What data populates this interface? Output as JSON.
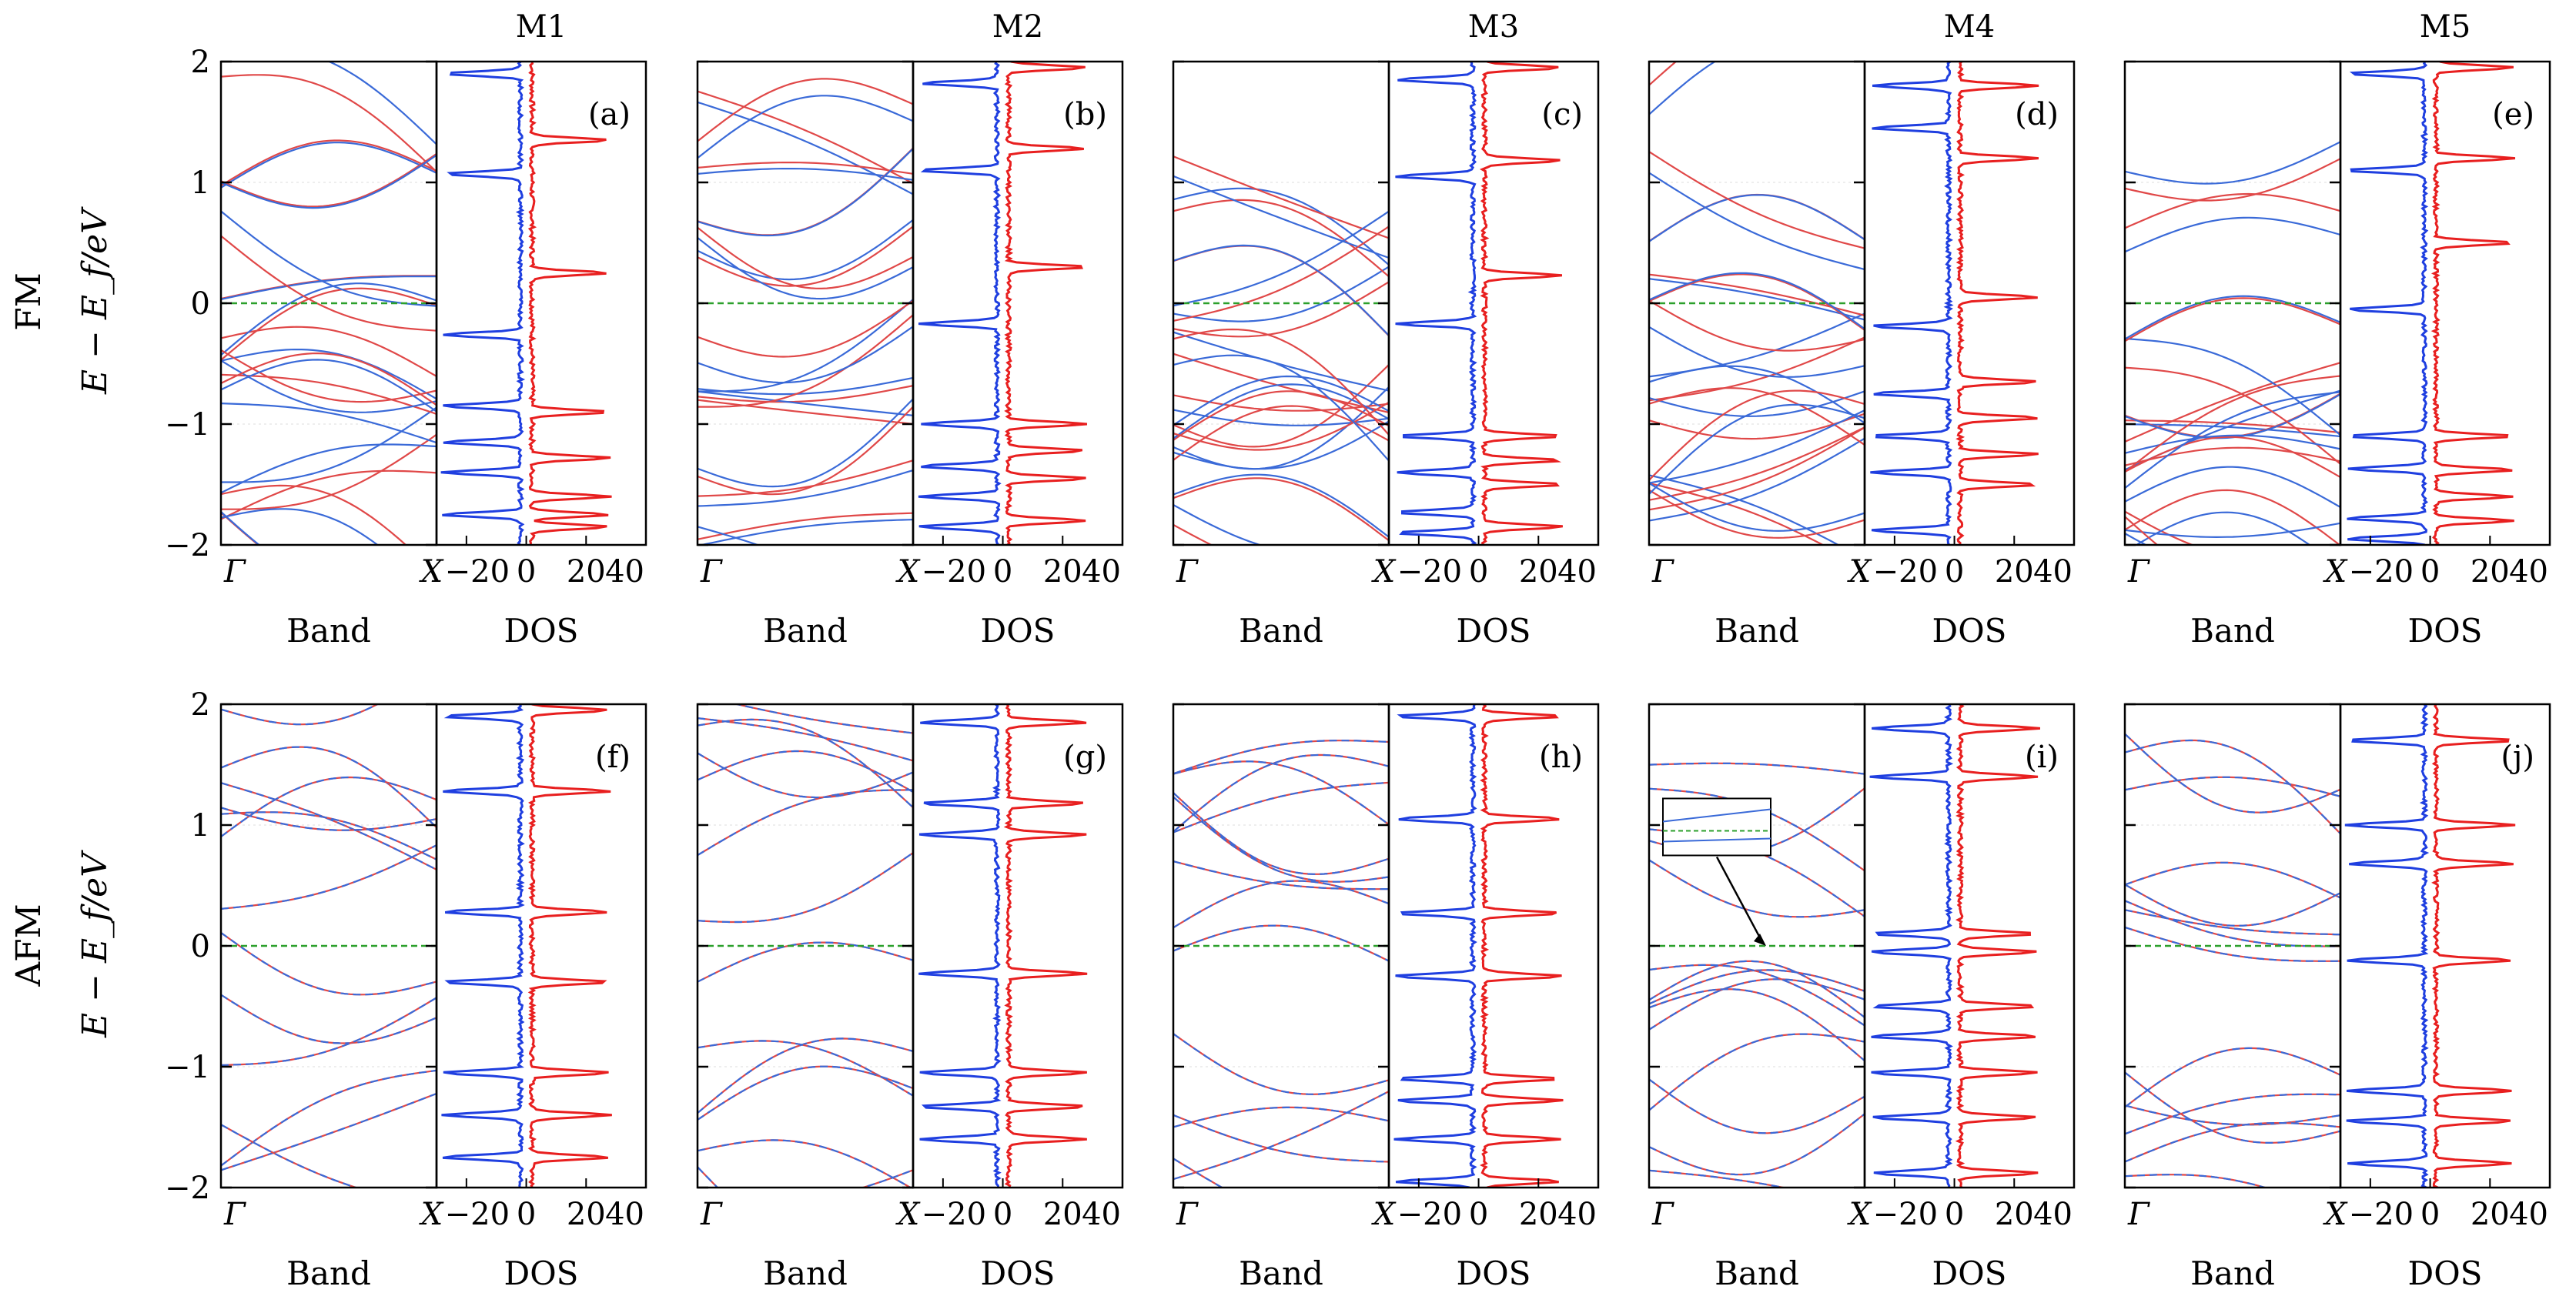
{
  "column_titles": [
    "M1",
    "M2",
    "M3",
    "M4",
    "M5"
  ],
  "row_labels": [
    "FM",
    "AFM"
  ],
  "y_axis_label": "E − E_f/eV",
  "band_axis_label": "Band",
  "dos_axis_label": "DOS",
  "band_x_ticks": [
    "Γ",
    "X"
  ],
  "dos_x_ticks": [
    "−20",
    "0",
    "20",
    "40"
  ],
  "y_ticks": [
    "−2",
    "−1",
    "0",
    "1",
    "2"
  ],
  "colors": {
    "spin_up": "#1f3fe0",
    "spin_down": "#e81f1f",
    "band_up": "#3a6ad8",
    "band_down": "#e04848",
    "fermi": "#2ca02c",
    "axis": "#000000"
  },
  "chart_data": [
    {
      "panel": "(a)",
      "material": "M1",
      "order": "FM",
      "type": "line",
      "ylim": [
        -2,
        2
      ],
      "dos_xlim": [
        -30,
        40
      ],
      "dos_peaks_up": [
        1.07,
        -0.26,
        -0.85,
        -1.15,
        -1.4,
        -1.75,
        1.9
      ],
      "dos_peaks_down": [
        1.35,
        0.25,
        -0.9,
        -1.28,
        -1.6,
        -1.75,
        -1.85
      ]
    },
    {
      "panel": "(b)",
      "material": "M2",
      "order": "FM",
      "type": "line",
      "ylim": [
        -2,
        2
      ],
      "dos_xlim": [
        -30,
        40
      ],
      "dos_peaks_up": [
        1.82,
        1.1,
        -0.17,
        -1.0,
        -1.35,
        -1.6,
        -1.85
      ],
      "dos_peaks_down": [
        1.95,
        1.28,
        0.3,
        -1.0,
        -1.22,
        -1.45,
        -1.8
      ]
    },
    {
      "panel": "(c)",
      "material": "M3",
      "order": "FM",
      "type": "line",
      "ylim": [
        -2,
        2
      ],
      "dos_xlim": [
        -30,
        40
      ],
      "dos_peaks_up": [
        1.85,
        1.05,
        -0.17,
        -1.1,
        -1.4,
        -1.73,
        -1.9
      ],
      "dos_peaks_down": [
        1.95,
        1.18,
        0.23,
        -1.1,
        -1.3,
        -1.5,
        -1.85
      ]
    },
    {
      "panel": "(d)",
      "material": "M4",
      "order": "FM",
      "type": "line",
      "ylim": [
        -2,
        2
      ],
      "dos_xlim": [
        -30,
        40
      ],
      "dos_peaks_up": [
        1.8,
        1.45,
        -0.19,
        -0.75,
        -1.1,
        -1.4,
        -1.88
      ],
      "dos_peaks_down": [
        1.8,
        1.2,
        0.05,
        -0.65,
        -0.95,
        -1.25,
        -1.5
      ]
    },
    {
      "panel": "(e)",
      "material": "M5",
      "order": "FM",
      "type": "line",
      "ylim": [
        -2,
        2
      ],
      "dos_xlim": [
        -30,
        40
      ],
      "dos_peaks_up": [
        1.9,
        1.1,
        -0.05,
        -1.1,
        -1.37,
        -1.78,
        -1.95
      ],
      "dos_peaks_down": [
        1.95,
        1.2,
        0.5,
        -1.1,
        -1.38,
        -1.6,
        -1.8
      ]
    },
    {
      "panel": "(f)",
      "material": "M1",
      "order": "AFM",
      "type": "line",
      "ylim": [
        -2,
        2
      ],
      "dos_xlim": [
        -30,
        40
      ],
      "dos_peaks_up": [
        1.9,
        1.28,
        0.28,
        -0.3,
        -1.05,
        -1.4,
        -1.75
      ],
      "dos_peaks_down": [
        1.95,
        1.28,
        0.28,
        -0.3,
        -1.05,
        -1.4,
        -1.75
      ]
    },
    {
      "panel": "(g)",
      "material": "M2",
      "order": "AFM",
      "type": "line",
      "ylim": [
        -2,
        2
      ],
      "dos_xlim": [
        -30,
        40
      ],
      "dos_peaks_up": [
        1.85,
        1.18,
        0.92,
        -0.23,
        -1.05,
        -1.33,
        -1.6
      ],
      "dos_peaks_down": [
        1.85,
        1.18,
        0.92,
        -0.23,
        -1.05,
        -1.33,
        -1.6
      ]
    },
    {
      "panel": "(h)",
      "material": "M3",
      "order": "AFM",
      "type": "line",
      "ylim": [
        -2,
        2
      ],
      "dos_xlim": [
        -30,
        40
      ],
      "dos_peaks_up": [
        1.9,
        1.05,
        0.27,
        -0.25,
        -1.1,
        -1.28,
        -1.6,
        -1.95
      ],
      "dos_peaks_down": [
        1.9,
        1.05,
        0.27,
        -0.25,
        -1.1,
        -1.28,
        -1.6,
        -1.95
      ]
    },
    {
      "panel": "(i)",
      "material": "M4",
      "order": "AFM",
      "type": "line",
      "ylim": [
        -2,
        2
      ],
      "dos_xlim": [
        -30,
        40
      ],
      "dos_peaks_up": [
        1.8,
        1.4,
        0.1,
        -0.05,
        -0.5,
        -0.75,
        -1.05,
        -1.42,
        -1.88
      ],
      "dos_peaks_down": [
        1.8,
        1.4,
        0.1,
        -0.05,
        -0.5,
        -0.75,
        -1.05,
        -1.42,
        -1.88
      ]
    },
    {
      "panel": "(j)",
      "material": "M5",
      "order": "AFM",
      "type": "line",
      "ylim": [
        -2,
        2
      ],
      "dos_xlim": [
        -30,
        40
      ],
      "dos_peaks_up": [
        1.7,
        1.0,
        0.68,
        -0.12,
        -1.2,
        -1.45,
        -1.8
      ],
      "dos_peaks_down": [
        1.7,
        1.0,
        0.68,
        -0.12,
        -1.2,
        -1.45,
        -1.8
      ]
    }
  ]
}
